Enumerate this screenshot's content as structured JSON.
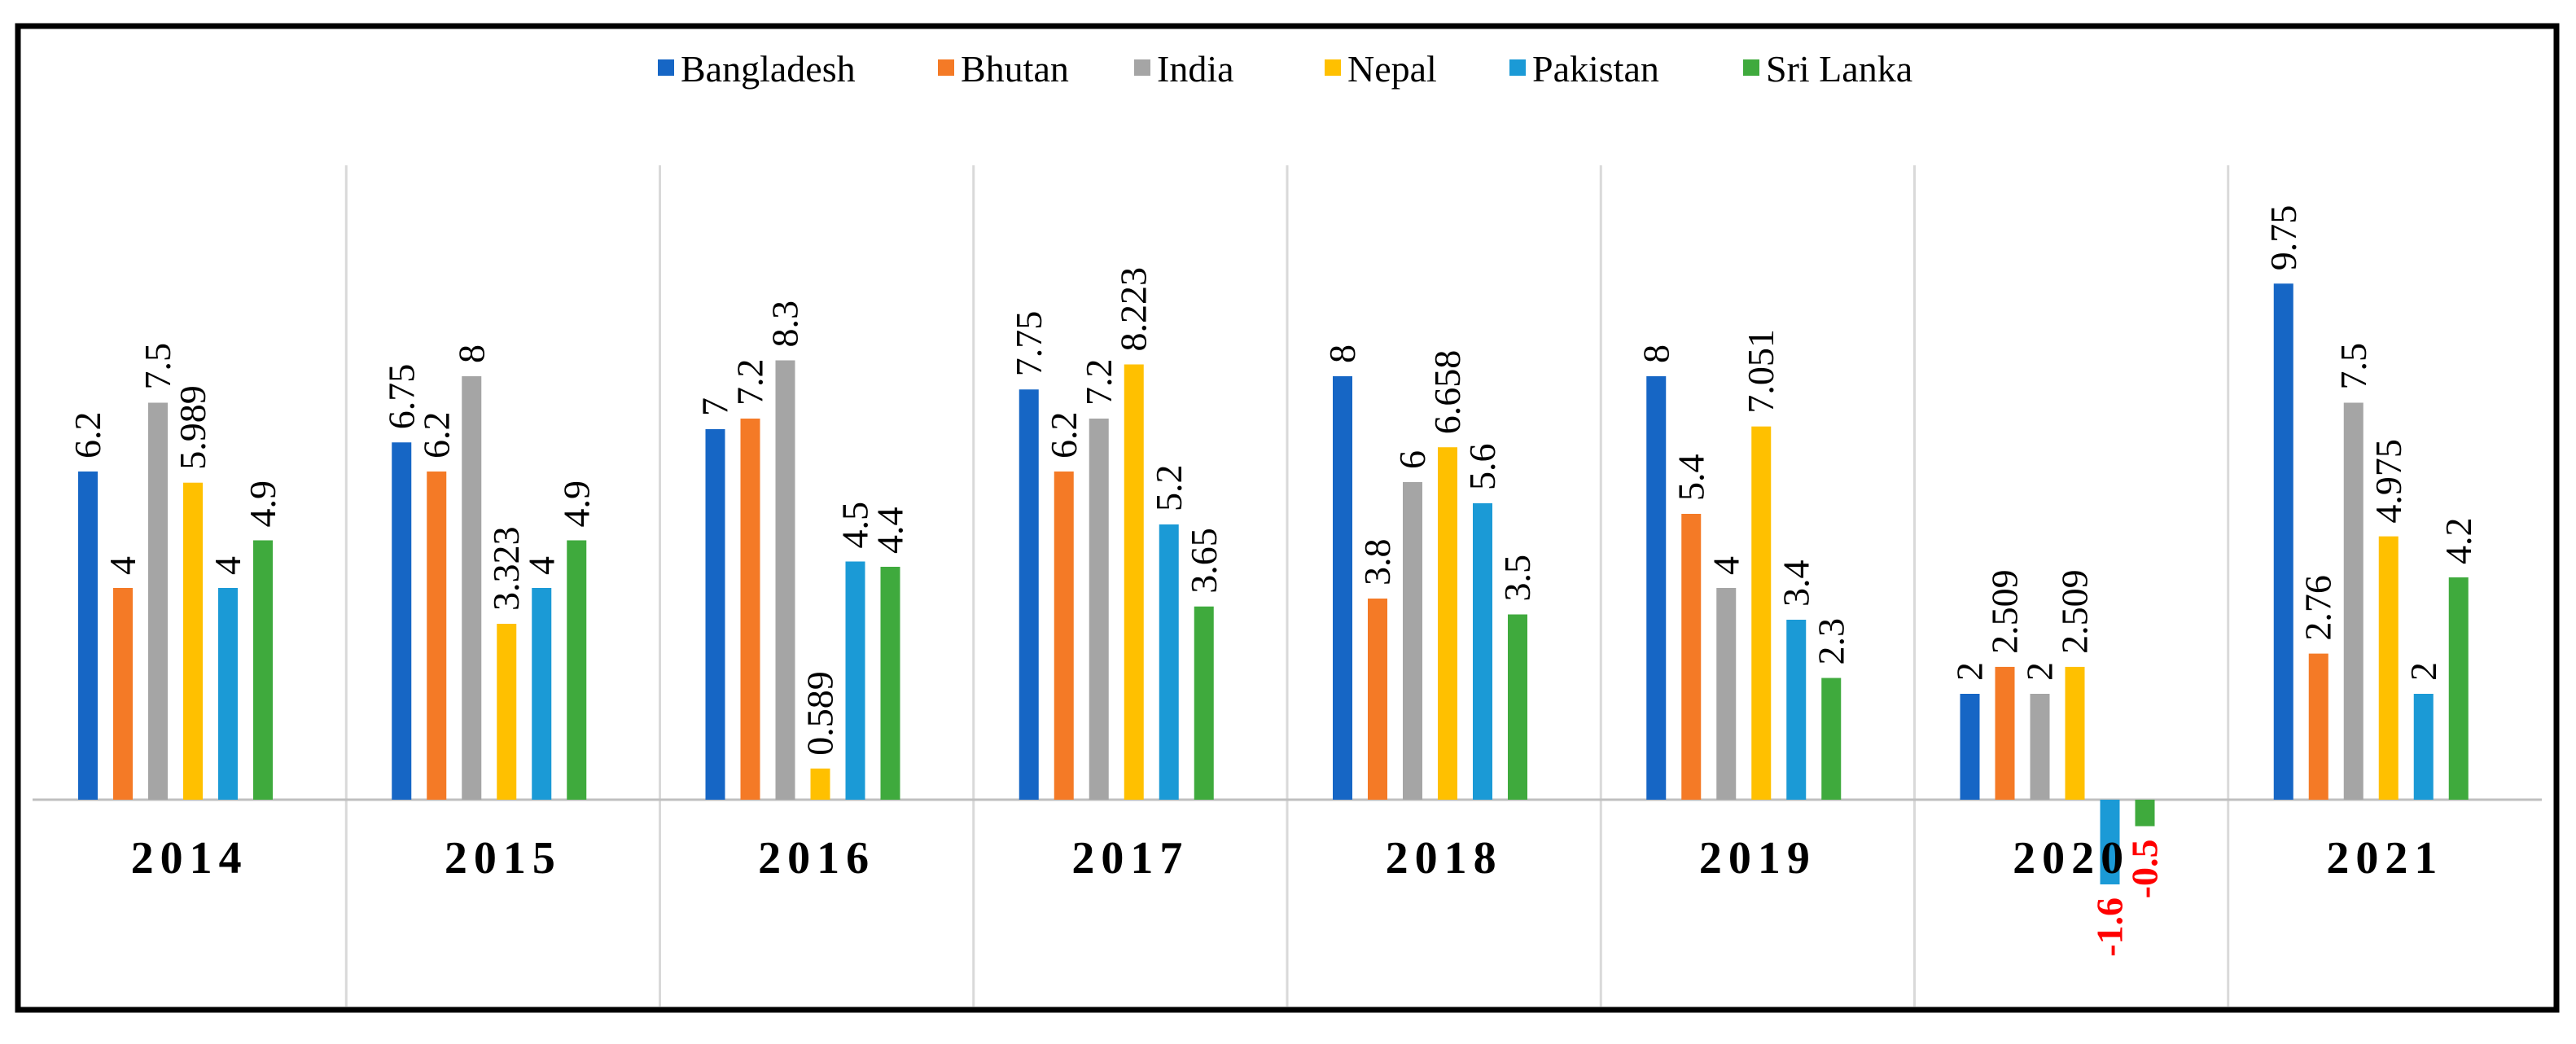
{
  "chart_data": {
    "type": "bar",
    "title": "",
    "xlabel": "",
    "ylabel": "",
    "ylim": [
      -2.6,
      12.6
    ],
    "grid": false,
    "legend_position": "top-center",
    "categories": [
      "2014",
      "2015",
      "2016",
      "2017",
      "2018",
      "2019",
      "2020",
      "2021"
    ],
    "series": [
      {
        "name": "Bangladesh",
        "color": "#1666c5",
        "values": [
          6.2,
          6.75,
          7,
          7.75,
          8,
          8,
          2,
          9.75
        ],
        "labels": [
          "6.2",
          "6.75",
          "7",
          "7.75",
          "8",
          "8",
          "2",
          "9.75"
        ]
      },
      {
        "name": "Bhutan",
        "color": "#f47a26",
        "values": [
          4,
          6.2,
          7.2,
          6.2,
          3.8,
          5.4,
          2.509,
          2.76
        ],
        "labels": [
          "4",
          "6.2",
          "7.2",
          "6.2",
          "3.8",
          "5.4",
          "2.509",
          "2.76"
        ]
      },
      {
        "name": "India",
        "color": "#a5a5a5",
        "values": [
          7.5,
          8,
          8.3,
          7.2,
          6,
          4,
          2,
          7.5
        ],
        "labels": [
          "7.5",
          "8",
          "8.3",
          "7.2",
          "6",
          "4",
          "2",
          "7.5"
        ]
      },
      {
        "name": "Nepal",
        "color": "#ffc000",
        "values": [
          5.989,
          3.323,
          0.589,
          8.223,
          6.658,
          7.051,
          2.509,
          4.975
        ],
        "labels": [
          "5.989",
          "3.323",
          "0.589",
          "8.223",
          "6.658",
          "7.051",
          "2.509",
          "4.975"
        ]
      },
      {
        "name": "Pakistan",
        "color": "#1b9ad6",
        "values": [
          4,
          4,
          4.5,
          5.2,
          5.6,
          3.4,
          -1.6,
          2
        ],
        "labels": [
          "4",
          "4",
          "4.5",
          "5.2",
          "5.6",
          "3.4",
          "-1.6",
          "2"
        ]
      },
      {
        "name": "Sri Lanka",
        "color": "#3faa3d",
        "values": [
          4.9,
          4.9,
          4.4,
          3.65,
          3.5,
          2.3,
          -0.5,
          4.2
        ],
        "labels": [
          "4.9",
          "4.9",
          "4.4",
          "3.65",
          "3.5",
          "2.3",
          "-0.5",
          "4.2"
        ]
      }
    ]
  }
}
